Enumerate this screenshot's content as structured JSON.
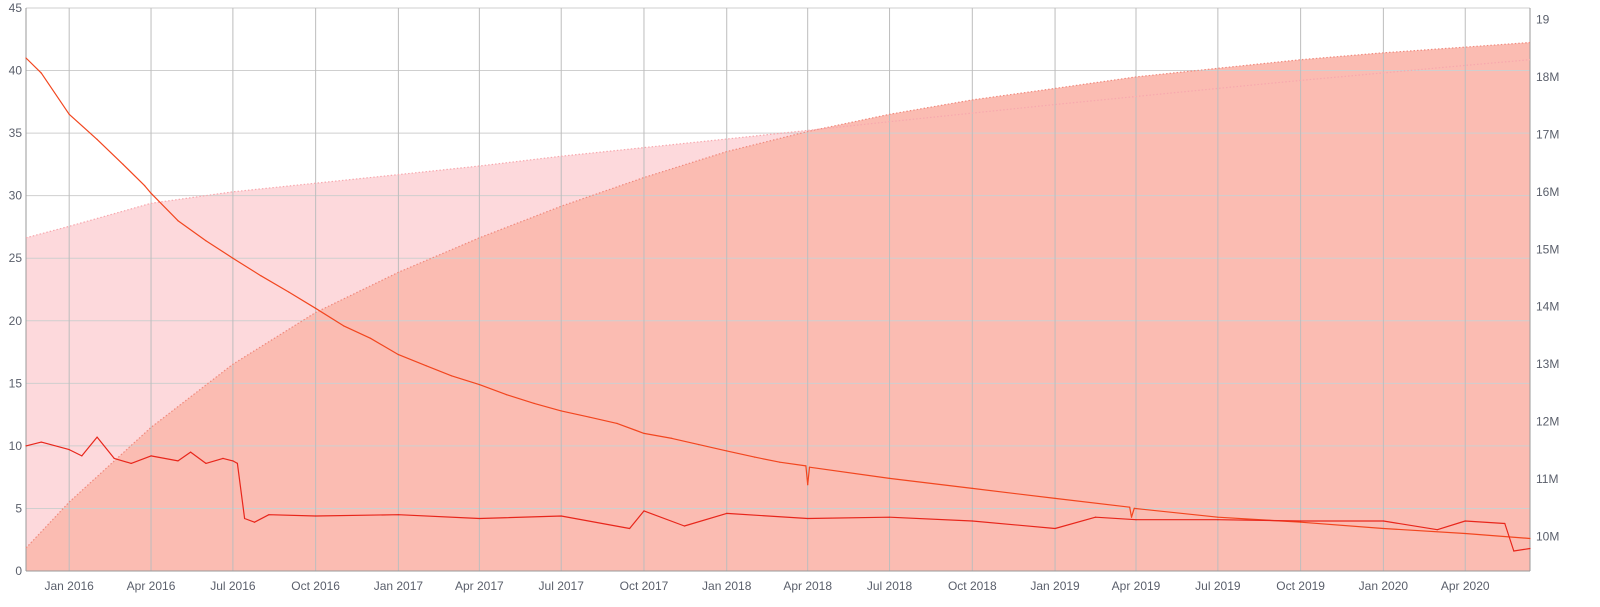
{
  "chart_data": {
    "type": "line",
    "title": "",
    "xlabel": "",
    "ylabel": "",
    "y2label": "",
    "x_range": [
      "2015-11-14",
      "2020-06-12"
    ],
    "ylim": [
      0,
      45
    ],
    "y2lim": [
      9.4,
      19.2
    ],
    "grid": true,
    "legend": "none",
    "x_ticks": [
      {
        "date": "2016-01-01",
        "label": "Jan 2016"
      },
      {
        "date": "2016-04-01",
        "label": "Apr 2016"
      },
      {
        "date": "2016-07-01",
        "label": "Jul 2016"
      },
      {
        "date": "2016-10-01",
        "label": "Oct 2016"
      },
      {
        "date": "2017-01-01",
        "label": "Jan 2017"
      },
      {
        "date": "2017-04-01",
        "label": "Apr 2017"
      },
      {
        "date": "2017-07-01",
        "label": "Jul 2017"
      },
      {
        "date": "2017-10-01",
        "label": "Oct 2017"
      },
      {
        "date": "2018-01-01",
        "label": "Jan 2018"
      },
      {
        "date": "2018-04-01",
        "label": "Apr 2018"
      },
      {
        "date": "2018-07-01",
        "label": "Jul 2018"
      },
      {
        "date": "2018-10-01",
        "label": "Oct 2018"
      },
      {
        "date": "2019-01-01",
        "label": "Jan 2019"
      },
      {
        "date": "2019-04-01",
        "label": "Apr 2019"
      },
      {
        "date": "2019-07-01",
        "label": "Jul 2019"
      },
      {
        "date": "2019-10-01",
        "label": "Oct 2019"
      },
      {
        "date": "2020-01-01",
        "label": "Jan 2020"
      },
      {
        "date": "2020-04-01",
        "label": "Apr 2020"
      }
    ],
    "y_ticks": [
      {
        "value": 0,
        "label": "0"
      },
      {
        "value": 5,
        "label": "5"
      },
      {
        "value": 10,
        "label": "10"
      },
      {
        "value": 15,
        "label": "15"
      },
      {
        "value": 20,
        "label": "20"
      },
      {
        "value": 25,
        "label": "25"
      },
      {
        "value": 30,
        "label": "30"
      },
      {
        "value": 35,
        "label": "35"
      },
      {
        "value": 40,
        "label": "40"
      },
      {
        "value": 45,
        "label": "45"
      }
    ],
    "y2_ticks": [
      {
        "value": 10,
        "label": "10M"
      },
      {
        "value": 11,
        "label": "11M"
      },
      {
        "value": 12,
        "label": "12M"
      },
      {
        "value": 13,
        "label": "13M"
      },
      {
        "value": 14,
        "label": "14M"
      },
      {
        "value": 15,
        "label": "15M"
      },
      {
        "value": 16,
        "label": "16M"
      },
      {
        "value": 17,
        "label": "17M"
      },
      {
        "value": 18,
        "label": "18M"
      }
    ],
    "extra_right_label": {
      "value": 19,
      "label": "19"
    },
    "series": [
      {
        "axis": "y2",
        "style": "area-dotted",
        "color": "#f7a8ae",
        "fill": "#fdd9dc",
        "points": [
          [
            "2015-11-14",
            15.2
          ],
          [
            "2016-01-01",
            15.4
          ],
          [
            "2016-04-01",
            15.8
          ],
          [
            "2016-07-01",
            16.0
          ],
          [
            "2016-10-01",
            16.15
          ],
          [
            "2017-01-01",
            16.3
          ],
          [
            "2017-04-01",
            16.45
          ],
          [
            "2017-07-01",
            16.62
          ],
          [
            "2017-10-01",
            16.77
          ],
          [
            "2018-01-01",
            16.92
          ],
          [
            "2018-04-01",
            17.07
          ],
          [
            "2018-07-01",
            17.22
          ],
          [
            "2018-10-01",
            17.37
          ],
          [
            "2019-01-01",
            17.52
          ],
          [
            "2019-04-01",
            17.66
          ],
          [
            "2019-07-01",
            17.8
          ],
          [
            "2019-10-01",
            17.94
          ],
          [
            "2020-01-01",
            18.07
          ],
          [
            "2020-04-01",
            18.2
          ],
          [
            "2020-06-12",
            18.3
          ]
        ]
      },
      {
        "axis": "y2",
        "style": "area-dotted",
        "color": "#f08a7e",
        "fill": "#fbbcb2",
        "points": [
          [
            "2015-11-14",
            9.8
          ],
          [
            "2016-01-01",
            10.6
          ],
          [
            "2016-04-01",
            11.9
          ],
          [
            "2016-07-01",
            13.0
          ],
          [
            "2016-10-01",
            13.9
          ],
          [
            "2017-01-01",
            14.6
          ],
          [
            "2017-04-01",
            15.2
          ],
          [
            "2017-07-01",
            15.75
          ],
          [
            "2017-10-01",
            16.25
          ],
          [
            "2018-01-01",
            16.7
          ],
          [
            "2018-04-01",
            17.05
          ],
          [
            "2018-07-01",
            17.35
          ],
          [
            "2018-10-01",
            17.6
          ],
          [
            "2019-01-01",
            17.8
          ],
          [
            "2019-04-01",
            18.0
          ],
          [
            "2019-07-01",
            18.15
          ],
          [
            "2019-10-01",
            18.3
          ],
          [
            "2020-01-01",
            18.42
          ],
          [
            "2020-04-01",
            18.52
          ],
          [
            "2020-06-12",
            18.6
          ]
        ]
      },
      {
        "axis": "y",
        "style": "line",
        "color": "#f2461f",
        "points": [
          [
            "2015-11-14",
            41.0
          ],
          [
            "2015-12-01",
            39.8
          ],
          [
            "2016-01-01",
            36.5
          ],
          [
            "2016-02-01",
            34.5
          ],
          [
            "2016-03-01",
            32.5
          ],
          [
            "2016-03-25",
            30.8
          ],
          [
            "2016-04-01",
            30.2
          ],
          [
            "2016-05-01",
            28.0
          ],
          [
            "2016-06-01",
            26.4
          ],
          [
            "2016-07-01",
            25.0
          ],
          [
            "2016-08-01",
            23.6
          ],
          [
            "2016-09-01",
            22.3
          ],
          [
            "2016-10-01",
            21.0
          ],
          [
            "2016-11-01",
            19.6
          ],
          [
            "2016-12-01",
            18.6
          ],
          [
            "2017-01-01",
            17.3
          ],
          [
            "2017-02-01",
            16.4
          ],
          [
            "2017-03-01",
            15.6
          ],
          [
            "2017-04-01",
            14.9
          ],
          [
            "2017-05-01",
            14.1
          ],
          [
            "2017-06-01",
            13.4
          ],
          [
            "2017-07-01",
            12.8
          ],
          [
            "2017-08-01",
            12.3
          ],
          [
            "2017-09-01",
            11.8
          ],
          [
            "2017-10-01",
            11.0
          ],
          [
            "2017-11-01",
            10.6
          ],
          [
            "2017-12-01",
            10.1
          ],
          [
            "2018-01-01",
            9.6
          ],
          [
            "2018-02-01",
            9.1
          ],
          [
            "2018-03-01",
            8.7
          ],
          [
            "2018-03-30",
            8.4
          ],
          [
            "2018-04-01",
            6.9
          ],
          [
            "2018-04-03",
            8.3
          ],
          [
            "2018-07-01",
            7.4
          ],
          [
            "2018-10-01",
            6.6
          ],
          [
            "2019-01-01",
            5.8
          ],
          [
            "2019-03-25",
            5.1
          ],
          [
            "2019-03-27",
            4.3
          ],
          [
            "2019-03-30",
            5.0
          ],
          [
            "2019-07-01",
            4.3
          ],
          [
            "2019-10-01",
            3.9
          ],
          [
            "2020-01-01",
            3.4
          ],
          [
            "2020-04-01",
            3.0
          ],
          [
            "2020-06-12",
            2.6
          ]
        ]
      },
      {
        "axis": "y",
        "style": "line",
        "color": "#e8261b",
        "points": [
          [
            "2015-11-14",
            10.0
          ],
          [
            "2015-12-01",
            10.3
          ],
          [
            "2016-01-01",
            9.7
          ],
          [
            "2016-01-15",
            9.2
          ],
          [
            "2016-02-01",
            10.7
          ],
          [
            "2016-02-20",
            9.0
          ],
          [
            "2016-03-10",
            8.6
          ],
          [
            "2016-04-01",
            9.2
          ],
          [
            "2016-05-01",
            8.8
          ],
          [
            "2016-05-15",
            9.5
          ],
          [
            "2016-06-01",
            8.6
          ],
          [
            "2016-06-20",
            9.0
          ],
          [
            "2016-07-01",
            8.8
          ],
          [
            "2016-07-06",
            8.6
          ],
          [
            "2016-07-14",
            4.2
          ],
          [
            "2016-07-25",
            3.9
          ],
          [
            "2016-08-10",
            4.5
          ],
          [
            "2016-10-01",
            4.4
          ],
          [
            "2017-01-01",
            4.5
          ],
          [
            "2017-04-01",
            4.2
          ],
          [
            "2017-07-01",
            4.4
          ],
          [
            "2017-09-15",
            3.4
          ],
          [
            "2017-10-01",
            4.8
          ],
          [
            "2017-11-15",
            3.6
          ],
          [
            "2018-01-01",
            4.6
          ],
          [
            "2018-04-01",
            4.2
          ],
          [
            "2018-07-01",
            4.3
          ],
          [
            "2018-10-01",
            4.0
          ],
          [
            "2019-01-01",
            3.4
          ],
          [
            "2019-02-15",
            4.3
          ],
          [
            "2019-04-01",
            4.1
          ],
          [
            "2019-07-01",
            4.1
          ],
          [
            "2019-10-01",
            4.0
          ],
          [
            "2020-01-01",
            4.0
          ],
          [
            "2020-03-01",
            3.3
          ],
          [
            "2020-04-01",
            4.0
          ],
          [
            "2020-05-15",
            3.8
          ],
          [
            "2020-05-25",
            1.6
          ],
          [
            "2020-06-12",
            1.8
          ]
        ]
      }
    ]
  }
}
